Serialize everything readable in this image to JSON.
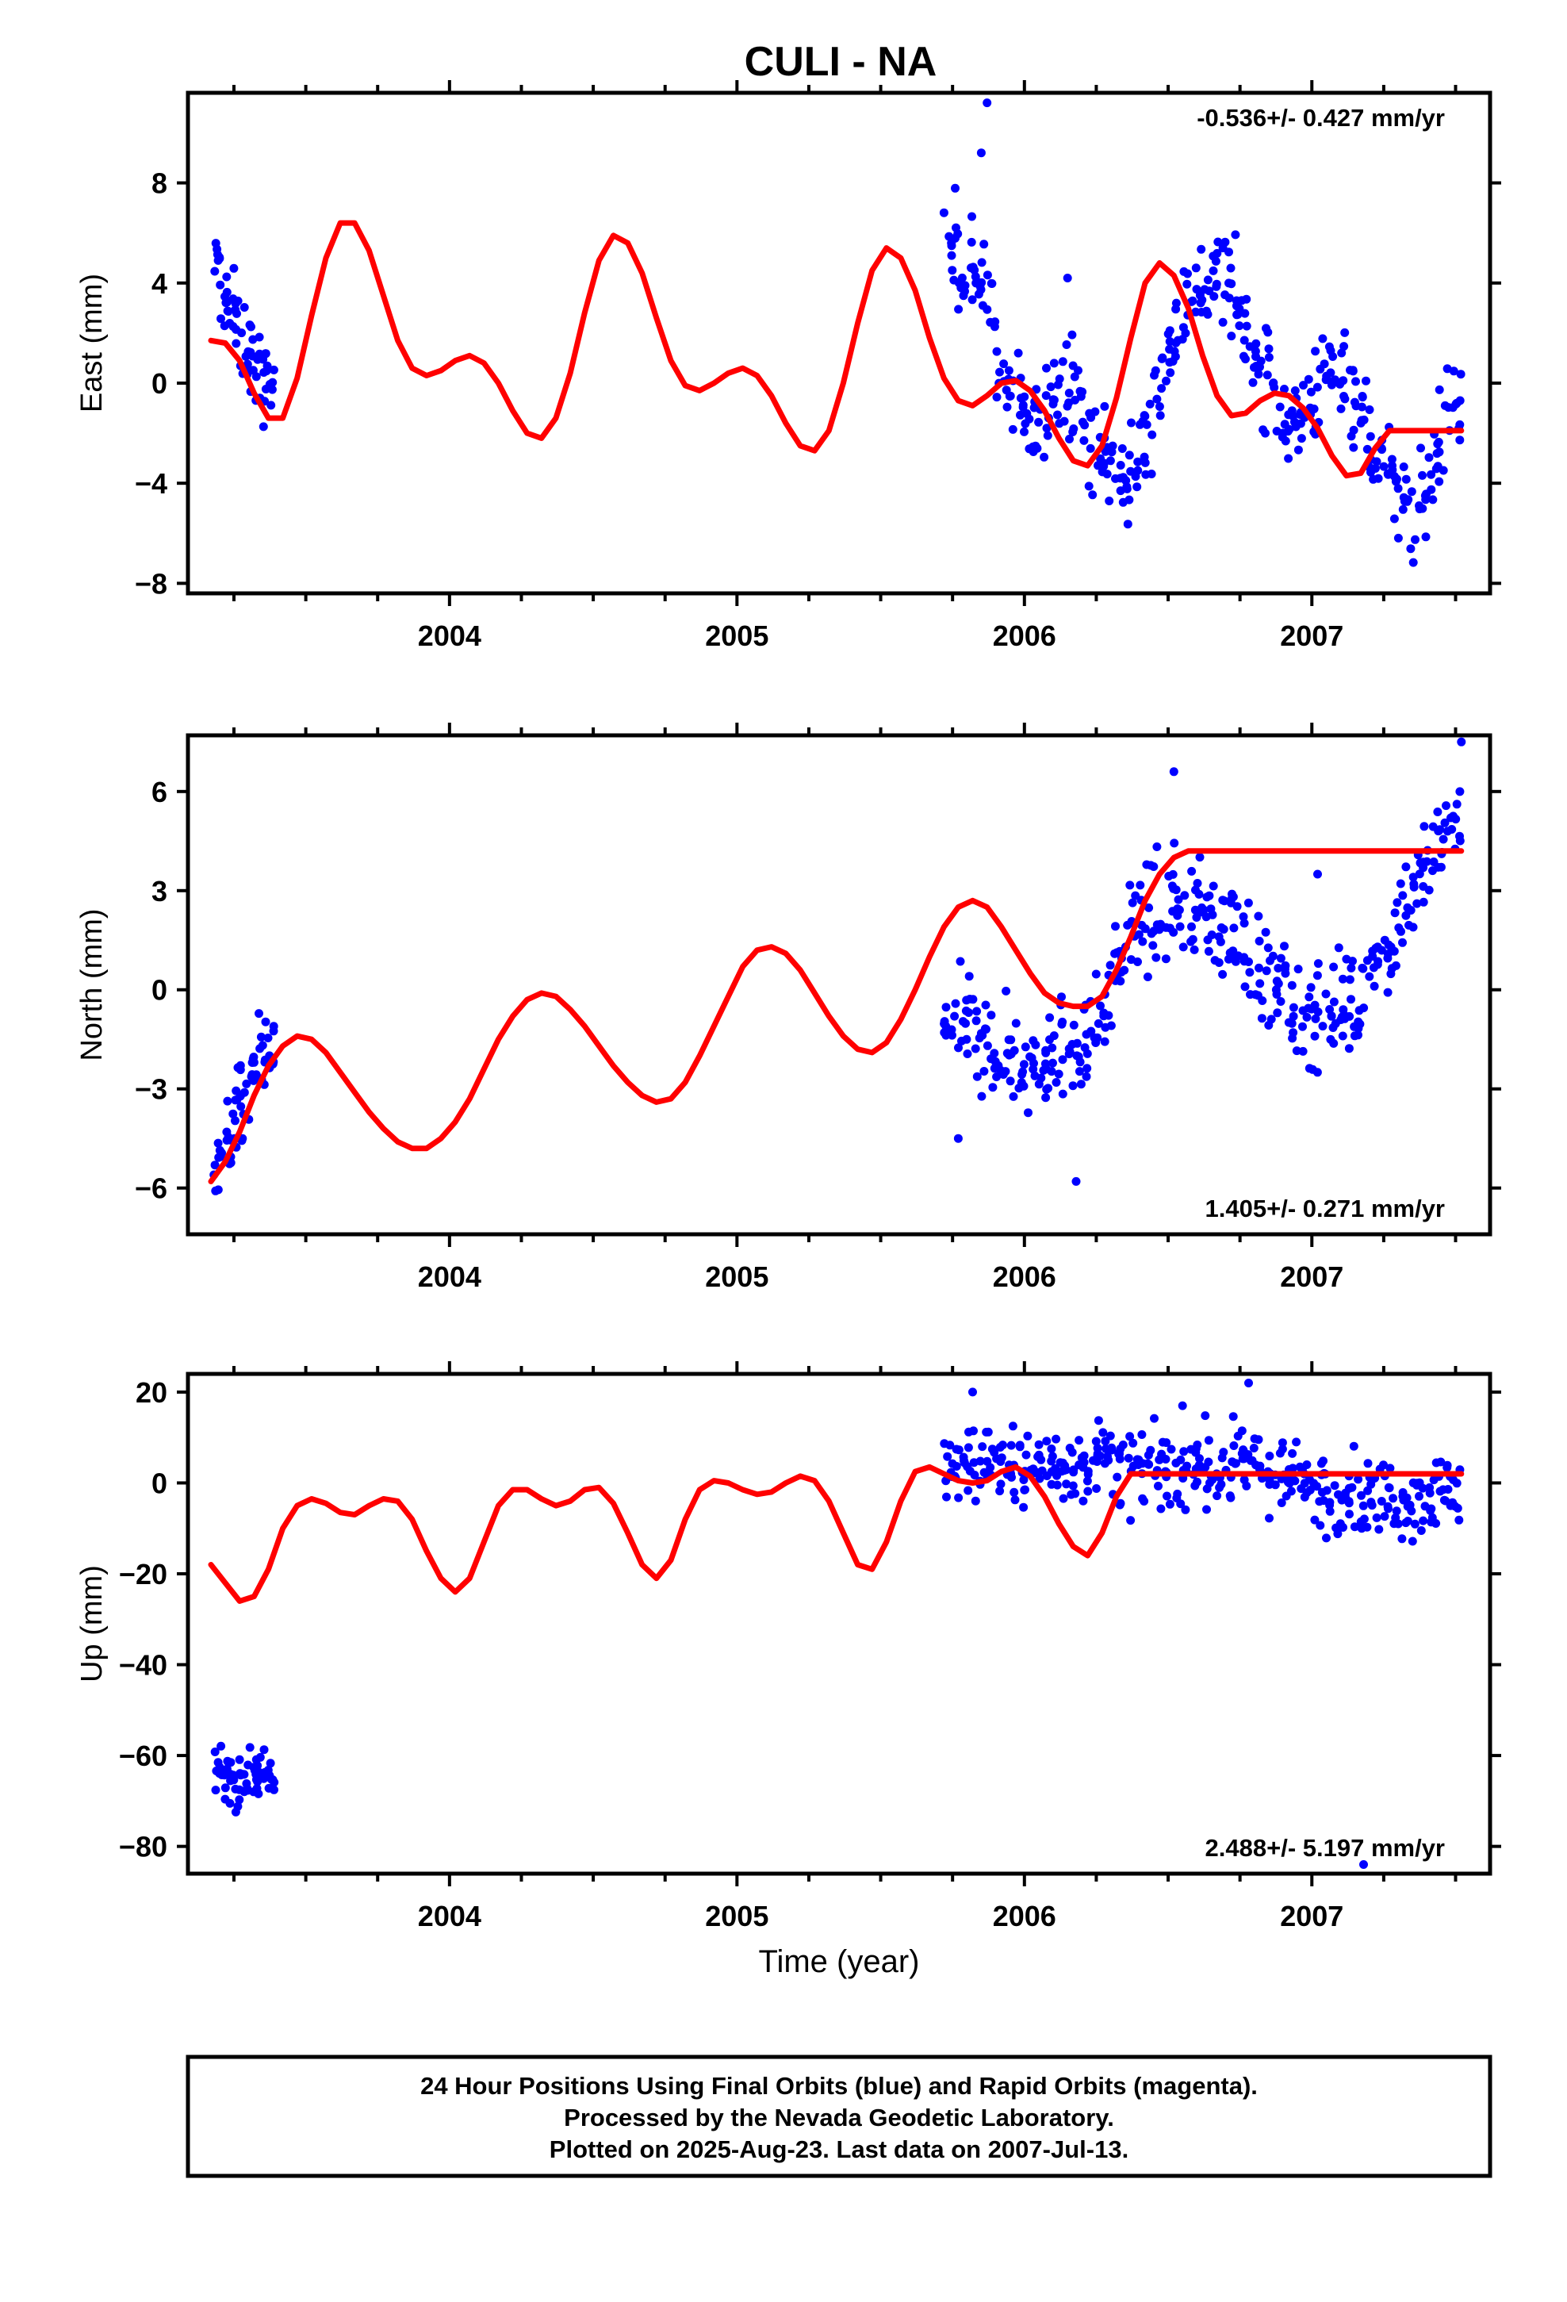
{
  "title": "CULI - NA",
  "colors": {
    "points": "#0000ff",
    "fit": "#ff0000",
    "axes": "#000000"
  },
  "footer": {
    "line1": "24 Hour Positions Using Final Orbits (blue) and Rapid Orbits (magenta).",
    "line2": "Processed by the Nevada Geodetic Laboratory.",
    "line3": "Plotted on 2025-Aug-23. Last data on 2007-Jul-13."
  },
  "chart_data": [
    {
      "type": "scatter",
      "ylabel": "East (mm)",
      "xlabel": "",
      "rate": "-0.536+/- 0.427 mm/yr",
      "rate_position": "top-right",
      "xlim": [
        2003.09,
        2007.62
      ],
      "ylim": [
        -8.4,
        11.6
      ],
      "xticks": [
        2004,
        2005,
        2006,
        2007
      ],
      "yticks": [
        8,
        4,
        0,
        -4,
        -8
      ],
      "tick_labels": [
        "8",
        "4",
        "0",
        "−4",
        "−8"
      ],
      "x_tick_labels": [
        "2004",
        "2005",
        "2006",
        "2007"
      ],
      "data_segments": [
        {
          "x": [
            2003.18,
            2003.21,
            2003.24,
            2003.27,
            2003.3,
            2003.33,
            2003.36,
            2003.39
          ],
          "y": [
            4.8,
            3.8,
            3.0,
            2.0,
            1.2,
            0.5,
            0.0,
            0.0
          ],
          "spread": 1.6
        },
        {
          "x": [
            2005.72,
            2005.76,
            2005.8,
            2005.84,
            2005.88,
            2005.92,
            2005.96,
            2006.0,
            2006.04,
            2006.08,
            2006.12,
            2006.16,
            2006.2,
            2006.24,
            2006.28,
            2006.32,
            2006.36,
            2006.4,
            2006.44,
            2006.48,
            2006.52,
            2006.56,
            2006.6,
            2006.64,
            2006.68,
            2006.72,
            2006.76,
            2006.8,
            2006.84,
            2006.88,
            2006.92,
            2006.96,
            2007.0,
            2007.04,
            2007.08,
            2007.12,
            2007.16,
            2007.2,
            2007.24,
            2007.28,
            2007.32,
            2007.36,
            2007.4,
            2007.44,
            2007.48,
            2007.52
          ],
          "y": [
            6.0,
            5.5,
            4.5,
            4.5,
            3.0,
            0.5,
            -0.8,
            -1.5,
            -1.8,
            -1.0,
            0.5,
            0.0,
            -1.0,
            -2.5,
            -3.0,
            -3.5,
            -4.0,
            -3.0,
            -1.5,
            0.5,
            2.0,
            3.5,
            3.5,
            4.0,
            4.5,
            4.0,
            2.0,
            1.0,
            0.5,
            -0.5,
            -1.5,
            -1.5,
            -0.5,
            0.0,
            0.5,
            0.5,
            -1.0,
            -2.0,
            -3.0,
            -4.0,
            -5.0,
            -5.5,
            -4.0,
            -2.5,
            -1.0,
            -1.0
          ],
          "spread": 1.9
        }
      ],
      "fit": {
        "x": [
          2003.17,
          2003.22,
          2003.27,
          2003.32,
          2003.37,
          2003.42,
          2003.47,
          2003.52,
          2003.57,
          2003.62,
          2003.67,
          2003.72,
          2003.77,
          2003.82,
          2003.87,
          2003.92,
          2003.97,
          2004.02,
          2004.07,
          2004.12,
          2004.17,
          2004.22,
          2004.27,
          2004.32,
          2004.37,
          2004.42,
          2004.47,
          2004.52,
          2004.57,
          2004.62,
          2004.67,
          2004.72,
          2004.77,
          2004.82,
          2004.87,
          2004.92,
          2004.97,
          2005.02,
          2005.07,
          2005.12,
          2005.17,
          2005.22,
          2005.27,
          2005.32,
          2005.37,
          2005.42,
          2005.47,
          2005.52,
          2005.57,
          2005.62,
          2005.67,
          2005.72,
          2005.77,
          2005.82,
          2005.87,
          2005.92,
          2005.97,
          2006.02,
          2006.07,
          2006.12,
          2006.17,
          2006.22,
          2006.27,
          2006.32,
          2006.37,
          2006.42,
          2006.47,
          2006.52,
          2006.57,
          2006.62,
          2006.67,
          2006.72,
          2006.77,
          2006.82,
          2006.87,
          2006.92,
          2006.97,
          2007.02,
          2007.07,
          2007.12,
          2007.17,
          2007.22,
          2007.27,
          2007.32,
          2007.37,
          2007.42,
          2007.47,
          2007.52
        ],
        "y": [
          1.7,
          1.6,
          0.9,
          -0.4,
          -1.4,
          -1.4,
          0.2,
          2.7,
          5.0,
          6.4,
          6.4,
          5.3,
          3.5,
          1.7,
          0.6,
          0.3,
          0.5,
          0.9,
          1.1,
          0.8,
          0.0,
          -1.1,
          -2.0,
          -2.2,
          -1.4,
          0.4,
          2.8,
          4.9,
          5.9,
          5.6,
          4.4,
          2.6,
          0.9,
          -0.1,
          -0.3,
          0.0,
          0.4,
          0.6,
          0.3,
          -0.5,
          -1.6,
          -2.5,
          -2.7,
          -1.9,
          0.0,
          2.4,
          4.5,
          5.4,
          5.0,
          3.7,
          1.8,
          0.2,
          -0.7,
          -0.9,
          -0.5,
          0.0,
          0.1,
          -0.3,
          -1.1,
          -2.2,
          -3.1,
          -3.3,
          -2.5,
          -0.6,
          1.8,
          4.0,
          4.8,
          4.3,
          3.0,
          1.1,
          -0.5,
          -1.3,
          -1.2,
          -0.7,
          -0.4,
          -0.5,
          -1.0,
          -1.8,
          -2.9,
          -3.7,
          -3.6,
          -2.6,
          -1.9,
          -1.9,
          -1.9,
          -1.9,
          -1.9,
          -1.9
        ]
      },
      "outliers": [
        [
          2005.87,
          11.2
        ],
        [
          2005.85,
          9.2
        ],
        [
          2006.15,
          4.2
        ]
      ]
    },
    {
      "type": "scatter",
      "ylabel": "North (mm)",
      "xlabel": "",
      "rate": "1.405+/- 0.271 mm/yr",
      "rate_position": "bottom-right",
      "xlim": [
        2003.09,
        2007.62
      ],
      "ylim": [
        -7.4,
        7.7
      ],
      "xticks": [
        2004,
        2005,
        2006,
        2007
      ],
      "yticks": [
        6,
        3,
        0,
        -3,
        -6
      ],
      "tick_labels": [
        "6",
        "3",
        "0",
        "−3",
        "−6"
      ],
      "x_tick_labels": [
        "2004",
        "2005",
        "2006",
        "2007"
      ],
      "data_segments": [
        {
          "x": [
            2003.18,
            2003.21,
            2003.24,
            2003.27,
            2003.3,
            2003.33,
            2003.36,
            2003.39
          ],
          "y": [
            -5.8,
            -5.2,
            -4.5,
            -3.8,
            -3.0,
            -2.5,
            -2.0,
            -2.0
          ],
          "spread": 1.3
        },
        {
          "x": [
            2005.72,
            2005.76,
            2005.8,
            2005.84,
            2005.88,
            2005.92,
            2005.96,
            2006.0,
            2006.04,
            2006.08,
            2006.12,
            2006.16,
            2006.2,
            2006.24,
            2006.28,
            2006.32,
            2006.36,
            2006.4,
            2006.44,
            2006.48,
            2006.52,
            2006.56,
            2006.6,
            2006.64,
            2006.68,
            2006.72,
            2006.76,
            2006.8,
            2006.84,
            2006.88,
            2006.92,
            2006.96,
            2007.0,
            2007.04,
            2007.08,
            2007.12,
            2007.16,
            2007.2,
            2007.24,
            2007.28,
            2007.32,
            2007.36,
            2007.4,
            2007.44,
            2007.48,
            2007.52
          ],
          "y": [
            -1.0,
            -1.0,
            -1.2,
            -1.5,
            -1.8,
            -2.0,
            -2.0,
            -2.2,
            -2.3,
            -2.0,
            -1.8,
            -1.5,
            -1.5,
            -1.5,
            -0.5,
            0.5,
            1.5,
            2.0,
            2.3,
            2.5,
            2.5,
            2.5,
            2.3,
            2.2,
            2.0,
            1.8,
            1.5,
            1.0,
            0.5,
            0.0,
            -0.5,
            -0.8,
            -0.8,
            -0.5,
            -0.5,
            -0.5,
            -0.2,
            0.5,
            1.0,
            1.8,
            2.5,
            3.0,
            3.8,
            4.2,
            4.8,
            5.5
          ],
          "spread": 1.5
        }
      ],
      "fit": {
        "x": [
          2003.17,
          2003.22,
          2003.27,
          2003.32,
          2003.37,
          2003.42,
          2003.47,
          2003.52,
          2003.57,
          2003.62,
          2003.67,
          2003.72,
          2003.77,
          2003.82,
          2003.87,
          2003.92,
          2003.97,
          2004.02,
          2004.07,
          2004.12,
          2004.17,
          2004.22,
          2004.27,
          2004.32,
          2004.37,
          2004.42,
          2004.47,
          2004.52,
          2004.57,
          2004.62,
          2004.67,
          2004.72,
          2004.77,
          2004.82,
          2004.87,
          2004.92,
          2004.97,
          2005.02,
          2005.07,
          2005.12,
          2005.17,
          2005.22,
          2005.27,
          2005.32,
          2005.37,
          2005.42,
          2005.47,
          2005.52,
          2005.57,
          2005.62,
          2005.67,
          2005.72,
          2005.77,
          2005.82,
          2005.87,
          2005.92,
          2005.97,
          2006.02,
          2006.07,
          2006.12,
          2006.17,
          2006.22,
          2006.27,
          2006.32,
          2006.37,
          2006.42,
          2006.47,
          2006.52,
          2006.57,
          2006.62,
          2006.67,
          2006.72,
          2006.77,
          2006.82,
          2006.87,
          2006.92,
          2006.97,
          2007.02,
          2007.07,
          2007.12,
          2007.17,
          2007.22,
          2007.27,
          2007.32,
          2007.37,
          2007.42,
          2007.47,
          2007.52
        ],
        "y": [
          -5.8,
          -5.2,
          -4.3,
          -3.2,
          -2.3,
          -1.7,
          -1.4,
          -1.5,
          -1.9,
          -2.5,
          -3.1,
          -3.7,
          -4.2,
          -4.6,
          -4.8,
          -4.8,
          -4.5,
          -4.0,
          -3.3,
          -2.4,
          -1.5,
          -0.8,
          -0.3,
          -0.1,
          -0.2,
          -0.6,
          -1.1,
          -1.7,
          -2.3,
          -2.8,
          -3.2,
          -3.4,
          -3.3,
          -2.8,
          -2.0,
          -1.1,
          -0.2,
          0.7,
          1.2,
          1.3,
          1.1,
          0.6,
          -0.1,
          -0.8,
          -1.4,
          -1.8,
          -1.9,
          -1.6,
          -0.9,
          0.0,
          1.0,
          1.9,
          2.5,
          2.7,
          2.5,
          1.9,
          1.2,
          0.5,
          -0.1,
          -0.4,
          -0.5,
          -0.5,
          -0.2,
          0.6,
          1.6,
          2.7,
          3.5,
          4.0,
          4.2,
          4.2,
          4.2,
          4.2,
          4.2,
          4.2,
          4.2,
          4.2,
          4.2,
          4.2,
          4.2,
          4.2,
          4.2,
          4.2,
          4.2,
          4.2,
          4.2,
          4.2,
          4.2,
          4.2
        ]
      },
      "outliers": [
        [
          2006.52,
          6.6
        ],
        [
          2007.52,
          7.5
        ],
        [
          2007.02,
          3.5
        ],
        [
          2005.77,
          -4.5
        ],
        [
          2006.18,
          -5.8
        ]
      ]
    },
    {
      "type": "scatter",
      "ylabel": "Up (mm)",
      "xlabel": "Time (year)",
      "rate": "2.488+/- 5.197 mm/yr",
      "rate_position": "bottom-right",
      "xlim": [
        2003.09,
        2007.62
      ],
      "ylim": [
        -86,
        24
      ],
      "xticks": [
        2004,
        2005,
        2006,
        2007
      ],
      "yticks": [
        20,
        0,
        -20,
        -40,
        -60,
        -80
      ],
      "tick_labels": [
        "20",
        "0",
        "−20",
        "−40",
        "−60",
        "−80"
      ],
      "x_tick_labels": [
        "2004",
        "2005",
        "2006",
        "2007"
      ],
      "data_segments": [
        {
          "x": [
            2003.18,
            2003.21,
            2003.24,
            2003.27,
            2003.3,
            2003.33,
            2003.36,
            2003.39
          ],
          "y": [
            -62,
            -63,
            -65,
            -66,
            -65,
            -64,
            -63,
            -63
          ],
          "spread": 6.5
        },
        {
          "x": [
            2005.72,
            2005.76,
            2005.8,
            2005.84,
            2005.88,
            2005.92,
            2005.96,
            2006.0,
            2006.04,
            2006.08,
            2006.12,
            2006.16,
            2006.2,
            2006.24,
            2006.28,
            2006.32,
            2006.36,
            2006.4,
            2006.44,
            2006.48,
            2006.52,
            2006.56,
            2006.6,
            2006.64,
            2006.68,
            2006.72,
            2006.76,
            2006.8,
            2006.84,
            2006.88,
            2006.92,
            2006.96,
            2007.0,
            2007.04,
            2007.08,
            2007.12,
            2007.16,
            2007.2,
            2007.24,
            2007.28,
            2007.32,
            2007.36,
            2007.4,
            2007.44,
            2007.48,
            2007.52
          ],
          "y": [
            2,
            3,
            4,
            5,
            5,
            4,
            3,
            3,
            3,
            4,
            4,
            4,
            4,
            5,
            5,
            4,
            3,
            2,
            2,
            2,
            3,
            4,
            4,
            3,
            3,
            4,
            4,
            4,
            3,
            2,
            1,
            0,
            -1,
            -2,
            -2,
            -2,
            -2,
            -3,
            -3,
            -3,
            -3,
            -3,
            -3,
            -2,
            -2,
            -1
          ],
          "spread": 8
        }
      ],
      "fit": {
        "x": [
          2003.17,
          2003.22,
          2003.27,
          2003.32,
          2003.37,
          2003.42,
          2003.47,
          2003.52,
          2003.57,
          2003.62,
          2003.67,
          2003.72,
          2003.77,
          2003.82,
          2003.87,
          2003.92,
          2003.97,
          2004.02,
          2004.07,
          2004.12,
          2004.17,
          2004.22,
          2004.27,
          2004.32,
          2004.37,
          2004.42,
          2004.47,
          2004.52,
          2004.57,
          2004.62,
          2004.67,
          2004.72,
          2004.77,
          2004.82,
          2004.87,
          2004.92,
          2004.97,
          2005.02,
          2005.07,
          2005.12,
          2005.17,
          2005.22,
          2005.27,
          2005.32,
          2005.37,
          2005.42,
          2005.47,
          2005.52,
          2005.57,
          2005.62,
          2005.67,
          2005.72,
          2005.77,
          2005.82,
          2005.87,
          2005.92,
          2005.97,
          2006.02,
          2006.07,
          2006.12,
          2006.17,
          2006.22,
          2006.27,
          2006.32,
          2006.37,
          2006.42,
          2006.47,
          2006.52,
          2006.57,
          2006.62,
          2006.67,
          2006.72,
          2006.77,
          2006.82,
          2006.87,
          2006.92,
          2006.97,
          2007.02,
          2007.07,
          2007.12,
          2007.17,
          2007.22,
          2007.27,
          2007.32,
          2007.37,
          2007.42,
          2007.47,
          2007.52
        ],
        "y": [
          -18,
          -22,
          -26,
          -25,
          -19,
          -10,
          -5,
          -3.5,
          -4.5,
          -6.5,
          -7,
          -5,
          -3.5,
          -4,
          -8,
          -15,
          -21,
          -24,
          -21,
          -13,
          -5,
          -1.5,
          -1.5,
          -3.5,
          -5,
          -4,
          -1.5,
          -1,
          -4.5,
          -11,
          -18,
          -21,
          -17,
          -8,
          -1.5,
          0.5,
          0,
          -1.5,
          -2.5,
          -2,
          0,
          1.5,
          0.5,
          -4,
          -11,
          -18,
          -19,
          -13,
          -4,
          2.5,
          3.5,
          2,
          0.5,
          0,
          0.5,
          2.5,
          3.5,
          1.5,
          -3,
          -9,
          -14,
          -16,
          -11,
          -3,
          2,
          2,
          2,
          2,
          2,
          2,
          2,
          2,
          2,
          2,
          2,
          2,
          2,
          2,
          2,
          2,
          2,
          2,
          2,
          2,
          2,
          2,
          2,
          2
        ]
      },
      "outliers": [
        [
          2006.78,
          22
        ],
        [
          2005.82,
          20
        ],
        [
          2006.55,
          17
        ],
        [
          2007.18,
          -84
        ]
      ]
    }
  ]
}
